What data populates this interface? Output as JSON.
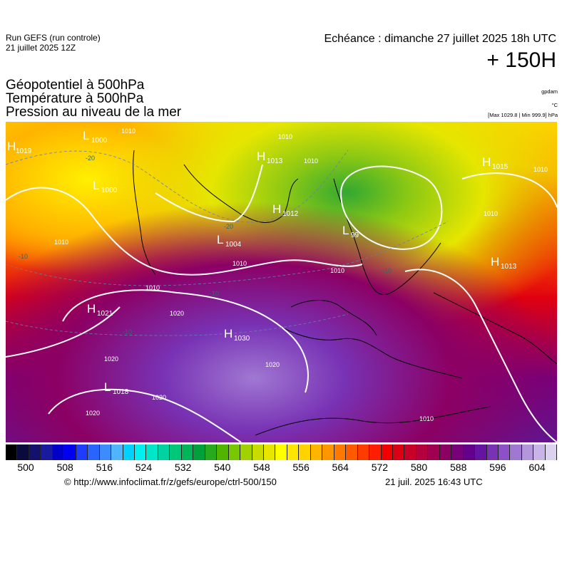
{
  "header": {
    "run_line1": "Run GEFS (run controle)",
    "run_line2": "21 juillet 2025 12Z",
    "echeance": "Echéance : dimanche 27 juillet 2025 18h UTC",
    "lead_time": "+ 150H"
  },
  "titles": {
    "line1": "Géopotentiel à 500hPa",
    "line2": "Température à 500hPa",
    "line3": "Pression au niveau de la mer"
  },
  "units": {
    "geopotential": "gpdam",
    "temperature": "°C",
    "pressure": "[Max 1029.8 | Min 999.9] hPa"
  },
  "legend": {
    "tick_labels": [
      "500",
      "508",
      "516",
      "524",
      "532",
      "540",
      "548",
      "556",
      "564",
      "572",
      "580",
      "588",
      "596",
      "604"
    ],
    "colors": [
      "#000000",
      "#0a0a3c",
      "#12126e",
      "#1a1aa0",
      "#0000c8",
      "#0000f0",
      "#1e3cff",
      "#2864ff",
      "#3c8cff",
      "#50b4ff",
      "#00d2ff",
      "#00f0f0",
      "#00e6c8",
      "#00d2a0",
      "#00c878",
      "#00b45a",
      "#00a03c",
      "#28aa1e",
      "#50b400",
      "#78c800",
      "#a0d200",
      "#c8dc00",
      "#e6e600",
      "#ffff00",
      "#ffe600",
      "#ffd200",
      "#ffb400",
      "#ff9600",
      "#ff7800",
      "#ff5a00",
      "#ff3c00",
      "#ff1e00",
      "#f00000",
      "#dc0014",
      "#c80028",
      "#b4003c",
      "#a00050",
      "#8c0064",
      "#780078",
      "#64008c",
      "#6414a0",
      "#7832b4",
      "#8c50c8",
      "#a078d2",
      "#b496dc",
      "#c8b4e6",
      "#dcd2f0"
    ]
  },
  "pressure_centers": [
    {
      "type": "H",
      "value": "1019"
    },
    {
      "type": "L",
      "value": "1000"
    },
    {
      "type": "L",
      "value": "1000"
    },
    {
      "type": "H",
      "value": "1013"
    },
    {
      "type": "H",
      "value": "1012"
    },
    {
      "type": "L",
      "value": "1004"
    },
    {
      "type": "L",
      "value": "99"
    },
    {
      "type": "H",
      "value": "1015"
    },
    {
      "type": "H",
      "value": "1013"
    },
    {
      "type": "H",
      "value": "1021"
    },
    {
      "type": "H",
      "value": "1030"
    },
    {
      "type": "L",
      "value": "1018"
    }
  ],
  "isobar_labels": [
    "1010",
    "1010",
    "1010",
    "1010",
    "1010",
    "1010",
    "1010",
    "1010",
    "1010",
    "1020",
    "1020",
    "1020",
    "1020",
    "1020",
    "1010"
  ],
  "temperature_labels": [
    "-20",
    "-20",
    "-10",
    "-10",
    "-10",
    "-10"
  ],
  "footer": {
    "credit": "© http://www.infoclimat.fr/z/gefs/europe/ctrl-500/150",
    "generated": "21 juil. 2025 16:43 UTC"
  }
}
